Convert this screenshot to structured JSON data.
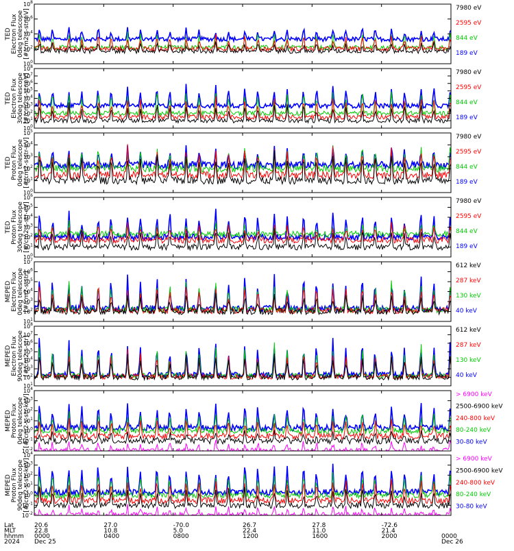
{
  "colors": {
    "blue": "#0000ff",
    "red": "#ff0000",
    "green": "#00cc00",
    "black": "#000000",
    "magenta": "#ff00ff"
  },
  "panels": [
    {
      "ylabel": [
        "TED",
        "Electron Flux",
        "0deg telescope",
        "[#/cm2-s-str-eV]"
      ],
      "ticks": [
        "10^8",
        "10^6",
        "10^4",
        "10^2",
        "10^0"
      ],
      "legend": [
        {
          "label": "7980 eV",
          "color": "black"
        },
        {
          "label": "2595 eV",
          "color": "red"
        },
        {
          "label": "844 eV",
          "color": "green"
        },
        {
          "label": "189 eV",
          "color": "blue"
        }
      ]
    },
    {
      "ylabel": [
        "TED",
        "Electron Flux",
        "30deg telescope",
        "[#/cm2-s-str-eV]"
      ],
      "ticks": [
        "10^8",
        "10^7",
        "10^6",
        "10^5",
        "10^4",
        "10^3",
        "10^2",
        "10^1",
        "10^0"
      ],
      "legend": [
        {
          "label": "7980 eV",
          "color": "black"
        },
        {
          "label": "2595 eV",
          "color": "red"
        },
        {
          "label": "844 eV",
          "color": "green"
        },
        {
          "label": "189 eV",
          "color": "blue"
        }
      ]
    },
    {
      "ylabel": [
        "TED",
        "Proton Flux",
        "0deg telescope",
        "[#/cm2-s-str-eV]"
      ],
      "ticks": [
        "10^5",
        "10^4",
        "10^3",
        "10^2",
        "10^1",
        "10^0"
      ],
      "legend": [
        {
          "label": "7980 eV",
          "color": "black"
        },
        {
          "label": "2595 eV",
          "color": "red"
        },
        {
          "label": "844 eV",
          "color": "green"
        },
        {
          "label": "189 eV",
          "color": "blue"
        }
      ]
    },
    {
      "ylabel": [
        "TED",
        "Proton Flux",
        "30deg telescope",
        "[#/cm2-s-str-eV]"
      ],
      "ticks": [
        "10^6",
        "10^5",
        "10^4",
        "10^3",
        "10^2",
        "10^1",
        "10^0"
      ],
      "legend": [
        {
          "label": "7980 eV",
          "color": "black"
        },
        {
          "label": "2595 eV",
          "color": "red"
        },
        {
          "label": "844 eV",
          "color": "green"
        },
        {
          "label": "189 eV",
          "color": "blue"
        }
      ]
    },
    {
      "ylabel": [
        "MEPED",
        "Electron Flux",
        "0deg telescope",
        "[#/cm2-s-str]"
      ],
      "ticks": [
        "10^7",
        "10^6",
        "10^5",
        "10^4",
        "10^3",
        "10^2",
        "10^1"
      ],
      "legend": [
        {
          "label": "612 keV",
          "color": "black"
        },
        {
          "label": "287 keV",
          "color": "red"
        },
        {
          "label": "130 keV",
          "color": "green"
        },
        {
          "label": "40 keV",
          "color": "blue"
        }
      ]
    },
    {
      "ylabel": [
        "MEPED",
        "Electron Flux",
        "90deg telescope",
        "[#/cm2-s-str]"
      ],
      "ticks": [
        "10^8",
        "10^7",
        "10^6",
        "10^5",
        "10^4",
        "10^3",
        "10^2",
        "10^1"
      ],
      "legend": [
        {
          "label": "612 keV",
          "color": "black"
        },
        {
          "label": "287 keV",
          "color": "red"
        },
        {
          "label": "130 keV",
          "color": "green"
        },
        {
          "label": "40 keV",
          "color": "blue"
        }
      ]
    },
    {
      "ylabel": [
        "MEPED",
        "Proton Flux",
        "0deg telescope",
        "[#/cm2-s-str-keV]"
      ],
      "ticks": [
        "10^4",
        "10^3",
        "10^2",
        "10^1",
        "10^0",
        "10^-1",
        "10^-2"
      ],
      "legend": [
        {
          "label": "> 6900 keV",
          "color": "magenta"
        },
        {
          "label": "2500-6900 keV",
          "color": "black"
        },
        {
          "label": "240-800 keV",
          "color": "red"
        },
        {
          "label": "80-240 keV",
          "color": "green"
        },
        {
          "label": "30-80 keV",
          "color": "blue"
        }
      ]
    },
    {
      "ylabel": [
        "MEPED",
        "Proton Flux",
        "90deg telescope",
        "[#/cm2-s-str-keV]"
      ],
      "ticks": [
        "10^4",
        "10^3",
        "10^2",
        "10^1",
        "10^0",
        "10^-1",
        "10^-2"
      ],
      "legend": [
        {
          "label": "> 6900 keV",
          "color": "magenta"
        },
        {
          "label": "2500-6900 keV",
          "color": "black"
        },
        {
          "label": "240-800 keV",
          "color": "red"
        },
        {
          "label": "80-240 keV",
          "color": "green"
        },
        {
          "label": "30-80 keV",
          "color": "blue"
        }
      ]
    }
  ],
  "x_axis": {
    "row_labels": [
      "Lat",
      "MLT",
      "hhmm",
      "2024"
    ],
    "columns": [
      {
        "lat": "20.6",
        "mlt": "22.8",
        "time": "0000",
        "date": "Dec 25"
      },
      {
        "lat": "27.0",
        "mlt": "10.8",
        "time": "0400",
        "date": ""
      },
      {
        "lat": "-70.0",
        "mlt": "5.0",
        "time": "0800",
        "date": ""
      },
      {
        "lat": "26.7",
        "mlt": "22.4",
        "time": "1200",
        "date": ""
      },
      {
        "lat": "27.8",
        "mlt": "11.0",
        "time": "1600",
        "date": ""
      },
      {
        "lat": "-72.6",
        "mlt": "21.4",
        "time": "2000",
        "date": ""
      },
      {
        "lat": "",
        "mlt": "",
        "time": "0000",
        "date": "Dec 26"
      }
    ]
  },
  "chart_data": {
    "type": "line",
    "x_unit": "hours UT from 2024 Dec 25 0000",
    "x_range": [
      0,
      24
    ],
    "y_scale": "log",
    "orbit_period_hours": 1.69,
    "passes_per_day": 14,
    "panel_series": [
      {
        "panel": "TED Electron Flux 0deg",
        "ylim": [
          1,
          100000000
        ],
        "series": [
          {
            "name": "189 eV",
            "baseline": 2000,
            "peak": 100000
          },
          {
            "name": "844 eV",
            "baseline": 150,
            "peak": 30000
          },
          {
            "name": "2595 eV",
            "baseline": 100,
            "peak": 10000
          },
          {
            "name": "7980 eV",
            "baseline": 50,
            "peak": 1000
          }
        ]
      },
      {
        "panel": "TED Electron Flux 30deg",
        "ylim": [
          1,
          100000000
        ],
        "series": [
          {
            "name": "189 eV",
            "baseline": 1000,
            "peak": 1000000
          },
          {
            "name": "844 eV",
            "baseline": 100,
            "peak": 300000
          },
          {
            "name": "2595 eV",
            "baseline": 30,
            "peak": 30000
          },
          {
            "name": "7980 eV",
            "baseline": 10,
            "peak": 3000
          }
        ]
      },
      {
        "panel": "TED Proton Flux 0deg",
        "ylim": [
          1,
          100000
        ],
        "series": [
          {
            "name": "189 eV",
            "baseline": 200,
            "peak": 10000
          },
          {
            "name": "844 eV",
            "baseline": 100,
            "peak": 10000
          },
          {
            "name": "2595 eV",
            "baseline": 30,
            "peak": 10000
          },
          {
            "name": "7980 eV",
            "baseline": 10,
            "peak": 5000
          }
        ]
      },
      {
        "panel": "TED Proton Flux 30deg",
        "ylim": [
          1,
          1000000
        ],
        "series": [
          {
            "name": "189 eV",
            "baseline": 100,
            "peak": 100000
          },
          {
            "name": "844 eV",
            "baseline": 200,
            "peak": 3000
          },
          {
            "name": "2595 eV",
            "baseline": 50,
            "peak": 3000
          },
          {
            "name": "7980 eV",
            "baseline": 10,
            "peak": 1000
          }
        ]
      },
      {
        "panel": "MEPED Electron Flux 0deg",
        "ylim": [
          10,
          10000000
        ],
        "series": [
          {
            "name": "40 keV",
            "baseline": 200,
            "peak": 1000000
          },
          {
            "name": "130 keV",
            "baseline": 150,
            "peak": 300000
          },
          {
            "name": "287 keV",
            "baseline": 120,
            "peak": 100000
          },
          {
            "name": "612 keV",
            "baseline": 100,
            "peak": 10000
          }
        ]
      },
      {
        "panel": "MEPED Electron Flux 90deg",
        "ylim": [
          10,
          100000000
        ],
        "series": [
          {
            "name": "40 keV",
            "baseline": 200,
            "peak": 10000000
          },
          {
            "name": "130 keV",
            "baseline": 150,
            "peak": 1000000
          },
          {
            "name": "287 keV",
            "baseline": 120,
            "peak": 300000
          },
          {
            "name": "612 keV",
            "baseline": 100,
            "peak": 100000
          }
        ]
      },
      {
        "panel": "MEPED Proton Flux 0deg",
        "ylim": [
          0.01,
          10000
        ],
        "series": [
          {
            "name": "30-80 keV",
            "baseline": 2,
            "peak": 1000
          },
          {
            "name": "80-240 keV",
            "baseline": 1,
            "peak": 100
          },
          {
            "name": "240-800 keV",
            "baseline": 0.3,
            "peak": 30
          },
          {
            "name": "2500-6900 keV",
            "baseline": 0.1,
            "peak": 1
          },
          {
            "name": "> 6900 keV",
            "baseline": 0.01,
            "peak": 0.1
          }
        ]
      },
      {
        "panel": "MEPED Proton Flux 90deg",
        "ylim": [
          0.01,
          10000
        ],
        "series": [
          {
            "name": "30-80 keV",
            "baseline": 2,
            "peak": 3000
          },
          {
            "name": "80-240 keV",
            "baseline": 1,
            "peak": 300
          },
          {
            "name": "240-800 keV",
            "baseline": 0.3,
            "peak": 100
          },
          {
            "name": "2500-6900 keV",
            "baseline": 0.1,
            "peak": 10
          },
          {
            "name": "> 6900 keV",
            "baseline": 0.01,
            "peak": 0.1
          }
        ]
      }
    ]
  }
}
